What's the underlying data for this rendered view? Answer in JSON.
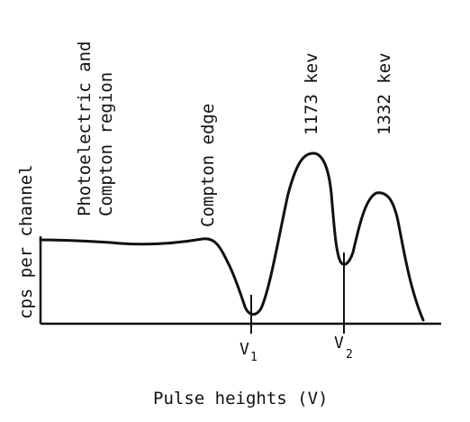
{
  "figure": {
    "ylabel": "cps per channel",
    "xlabel": "Pulse heights (V)",
    "regions": {
      "photoelectric_line1": "Photoelectric and",
      "photoelectric_line2": "Compton region",
      "compton_edge": "Compton edge",
      "peak1": "1173 kev",
      "peak2": "1332 kev"
    },
    "markers": {
      "v1_letter": "V",
      "v1_sub": "1",
      "v2_letter": "V",
      "v2_sub": "2"
    },
    "colors": {
      "ink": "#111111",
      "background": "#ffffff"
    }
  }
}
